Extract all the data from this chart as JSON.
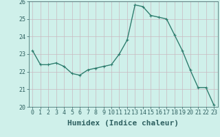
{
  "x": [
    0,
    1,
    2,
    3,
    4,
    5,
    6,
    7,
    8,
    9,
    10,
    11,
    12,
    13,
    14,
    15,
    16,
    17,
    18,
    19,
    20,
    21,
    22,
    23
  ],
  "y": [
    23.2,
    22.4,
    22.4,
    22.5,
    22.3,
    21.9,
    21.8,
    22.1,
    22.2,
    22.3,
    22.4,
    23.0,
    23.8,
    25.8,
    25.7,
    25.2,
    25.1,
    25.0,
    24.1,
    23.2,
    22.1,
    21.1,
    21.1,
    20.1
  ],
  "line_color": "#2e7d6e",
  "marker": "+",
  "marker_size": 3,
  "bg_color": "#cff0ea",
  "grid_color_h": "#c8b8c0",
  "grid_color_v": "#c8b8c0",
  "xlabel": "Humidex (Indice chaleur)",
  "ylim": [
    20,
    26
  ],
  "xlim": [
    -0.5,
    23.5
  ],
  "yticks": [
    20,
    21,
    22,
    23,
    24,
    25,
    26
  ],
  "xticks": [
    0,
    1,
    2,
    3,
    4,
    5,
    6,
    7,
    8,
    9,
    10,
    11,
    12,
    13,
    14,
    15,
    16,
    17,
    18,
    19,
    20,
    21,
    22,
    23
  ],
  "tick_fontsize": 6,
  "xlabel_fontsize": 8,
  "line_width": 1.0
}
